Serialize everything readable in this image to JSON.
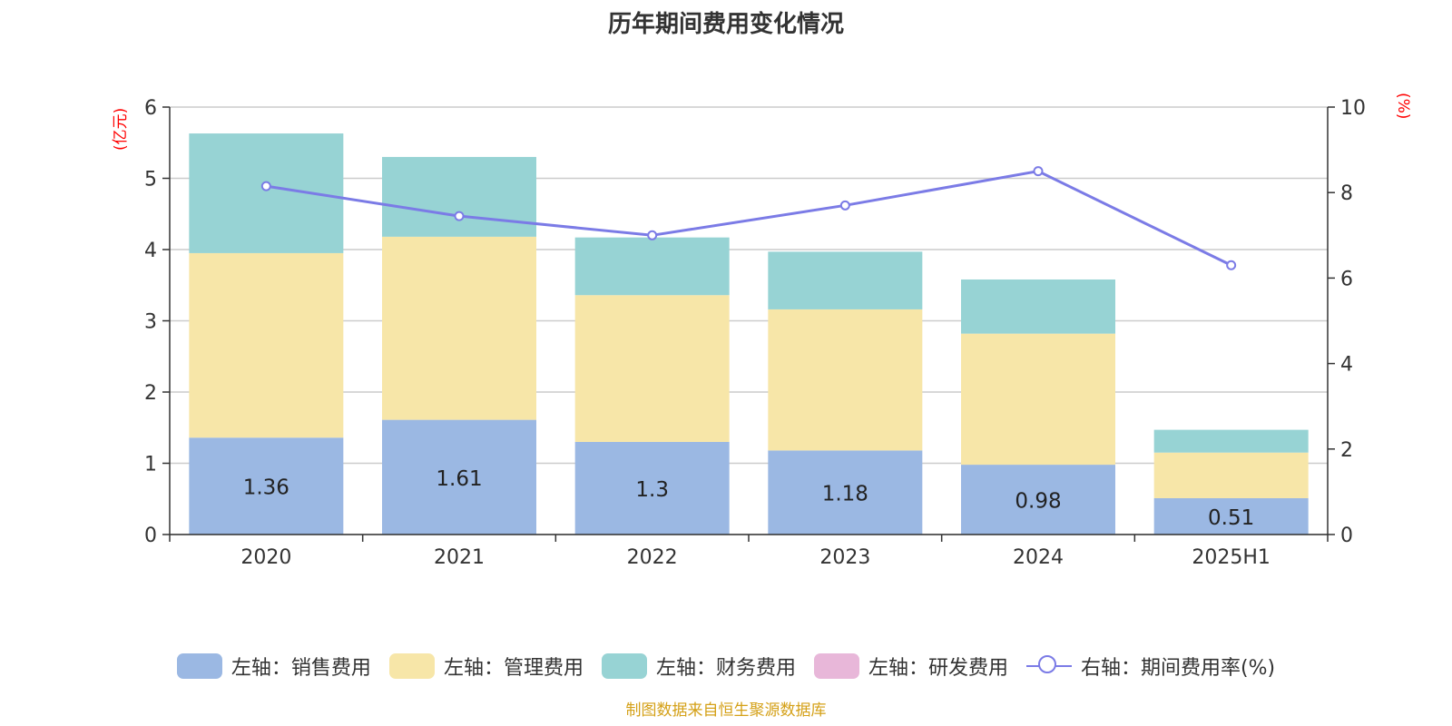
{
  "title": "历年期间费用变化情况",
  "left_unit": "(亿元)",
  "right_unit": "(%)",
  "source": "制图数据来自恒生聚源数据库",
  "legend": [
    {
      "label": "左轴：销售费用",
      "color": "#9bb8e3",
      "kind": "bar"
    },
    {
      "label": "左轴：管理费用",
      "color": "#f7e6a8",
      "kind": "bar"
    },
    {
      "label": "左轴：财务费用",
      "color": "#97d3d4",
      "kind": "bar"
    },
    {
      "label": "左轴：研发费用",
      "color": "#e8b7d9",
      "kind": "bar"
    },
    {
      "label": "右轴：期间费用率(%)",
      "color": "#7b7be6",
      "kind": "line"
    }
  ],
  "chart_data": {
    "type": "bar",
    "categories": [
      "2020",
      "2021",
      "2022",
      "2023",
      "2024",
      "2025H1"
    ],
    "series": [
      {
        "name": "左轴：销售费用",
        "axis": "left",
        "color": "#9bb8e3",
        "values": [
          1.36,
          1.61,
          1.3,
          1.18,
          0.98,
          0.51
        ],
        "labels": [
          "1.36",
          "1.61",
          "1.3",
          "1.18",
          "0.98",
          "0.51"
        ]
      },
      {
        "name": "左轴：管理费用",
        "axis": "left",
        "color": "#f7e6a8",
        "values": [
          2.59,
          2.57,
          2.06,
          1.98,
          1.84,
          0.64
        ]
      },
      {
        "name": "左轴：财务费用",
        "axis": "left",
        "color": "#97d3d4",
        "values": [
          1.68,
          1.12,
          0.81,
          0.81,
          0.76,
          0.32
        ]
      },
      {
        "name": "左轴：研发费用",
        "axis": "left",
        "color": "#e8b7d9",
        "values": [
          0,
          0,
          0,
          0,
          0,
          0
        ]
      },
      {
        "name": "右轴：期间费用率(%)",
        "axis": "right",
        "type": "line",
        "color": "#7b7be6",
        "values": [
          8.15,
          7.45,
          7.0,
          7.7,
          8.5,
          6.3
        ]
      }
    ],
    "y_left": {
      "min": 0,
      "max": 6,
      "ticks": [
        0,
        1,
        2,
        3,
        4,
        5,
        6
      ]
    },
    "y_right": {
      "min": 0,
      "max": 10,
      "ticks": [
        0,
        2,
        4,
        6,
        8,
        10
      ]
    },
    "grid": true,
    "legend_position": "bottom"
  }
}
